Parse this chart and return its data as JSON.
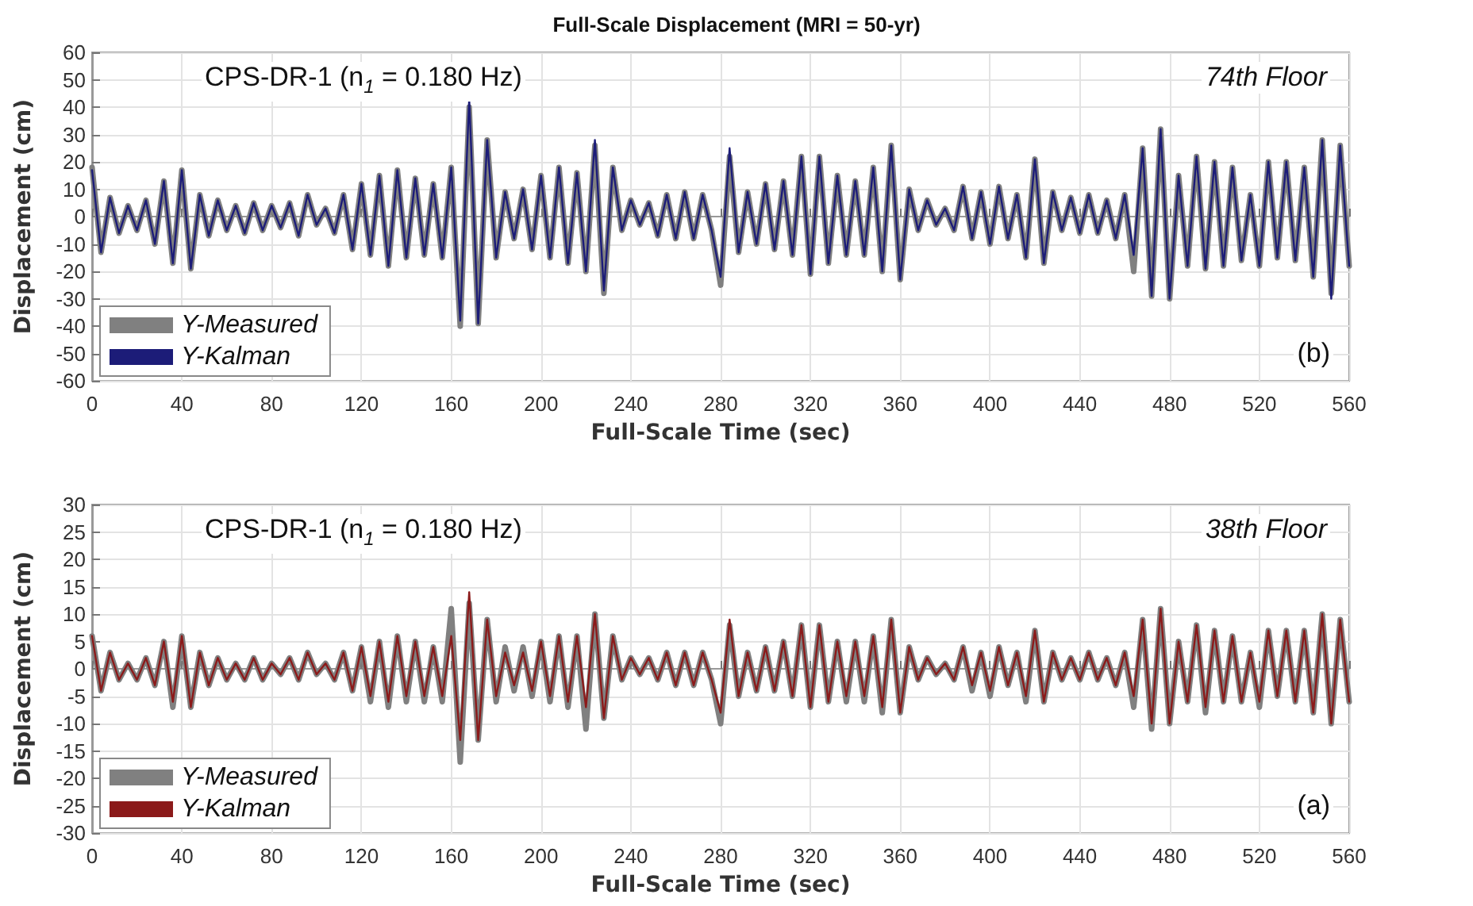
{
  "chart_data": [
    {
      "type": "line",
      "title": "Full-Scale Displacement (MRI = 50-yr)",
      "xlabel": "Full-Scale Time (sec)",
      "ylabel": "Displacement (cm)",
      "annotations": [
        "CPS-DR-1 (n$_{1}$ = 0.180 Hz)",
        "74th Floor",
        "(b)"
      ],
      "x": [
        0,
        4,
        8,
        12,
        16,
        20,
        24,
        28,
        32,
        36,
        40,
        44,
        48,
        52,
        56,
        60,
        64,
        68,
        72,
        76,
        80,
        84,
        88,
        92,
        96,
        100,
        104,
        108,
        112,
        116,
        120,
        124,
        128,
        132,
        136,
        140,
        144,
        148,
        152,
        156,
        160,
        164,
        168,
        172,
        176,
        180,
        184,
        188,
        192,
        196,
        200,
        204,
        208,
        212,
        216,
        220,
        224,
        228,
        232,
        236,
        240,
        244,
        248,
        252,
        256,
        260,
        264,
        268,
        272,
        276,
        280,
        284,
        288,
        292,
        296,
        300,
        304,
        308,
        312,
        316,
        320,
        324,
        328,
        332,
        336,
        340,
        344,
        348,
        352,
        356,
        360,
        364,
        368,
        372,
        376,
        380,
        384,
        388,
        392,
        396,
        400,
        404,
        408,
        412,
        416,
        420,
        424,
        428,
        432,
        436,
        440,
        444,
        448,
        452,
        456,
        460,
        464,
        468,
        472,
        476,
        480,
        484,
        488,
        492,
        496,
        500,
        504,
        508,
        512,
        516,
        520,
        524,
        528,
        532,
        536,
        540,
        544,
        548,
        552,
        556,
        560
      ],
      "series": [
        {
          "name": "Y-Measured",
          "color": "#808080",
          "values": [
            18,
            -13,
            7,
            -6,
            4,
            -5,
            6,
            -10,
            13,
            -17,
            17,
            -19,
            8,
            -7,
            6,
            -5,
            4,
            -6,
            5,
            -5,
            4,
            -4,
            5,
            -7,
            8,
            -3,
            3,
            -6,
            8,
            -12,
            12,
            -14,
            15,
            -18,
            17,
            -15,
            14,
            -14,
            12,
            -15,
            18,
            -40,
            40,
            -39,
            28,
            -15,
            9,
            -8,
            10,
            -12,
            15,
            -15,
            18,
            -17,
            16,
            -20,
            26,
            -28,
            18,
            -5,
            6,
            -3,
            5,
            -7,
            8,
            -8,
            9,
            -8,
            8,
            -5,
            -25,
            22,
            -13,
            9,
            -10,
            12,
            -12,
            13,
            -14,
            22,
            -21,
            22,
            -17,
            15,
            -14,
            13,
            -14,
            18,
            -20,
            26,
            -23,
            10,
            -5,
            6,
            -3,
            3,
            -5,
            11,
            -8,
            9,
            -10,
            11,
            -8,
            8,
            -15,
            21,
            -17,
            9,
            -5,
            7,
            -6,
            8,
            -6,
            6,
            -8,
            8,
            -20,
            25,
            -29,
            32,
            -30,
            15,
            -18,
            22,
            -19,
            20,
            -18,
            18,
            -16,
            8,
            -18,
            20,
            -15,
            20,
            -16,
            18,
            -22,
            28,
            -28,
            26,
            -18
          ]
        },
        {
          "name": "Y-Kalman",
          "color": "#1c1c78",
          "values": [
            17,
            -13,
            7,
            -6,
            4,
            -5,
            6,
            -10,
            13,
            -17,
            17,
            -19,
            8,
            -7,
            6,
            -5,
            4,
            -6,
            5,
            -5,
            4,
            -4,
            5,
            -7,
            8,
            -3,
            3,
            -6,
            8,
            -12,
            12,
            -14,
            15,
            -18,
            17,
            -15,
            14,
            -14,
            12,
            -15,
            18,
            -38,
            43,
            -39,
            28,
            -15,
            9,
            -8,
            10,
            -12,
            15,
            -15,
            18,
            -17,
            16,
            -20,
            28,
            -27,
            18,
            -5,
            6,
            -3,
            5,
            -7,
            8,
            -8,
            9,
            -8,
            8,
            -5,
            -22,
            25,
            -13,
            9,
            -10,
            12,
            -12,
            13,
            -14,
            22,
            -21,
            22,
            -17,
            15,
            -14,
            13,
            -14,
            18,
            -20,
            26,
            -23,
            10,
            -5,
            6,
            -3,
            3,
            -5,
            11,
            -8,
            9,
            -10,
            11,
            -8,
            8,
            -15,
            21,
            -17,
            9,
            -5,
            7,
            -6,
            8,
            -6,
            6,
            -8,
            8,
            -14,
            25,
            -29,
            32,
            -30,
            15,
            -18,
            22,
            -19,
            20,
            -18,
            18,
            -16,
            8,
            -18,
            20,
            -15,
            20,
            -16,
            18,
            -22,
            28,
            -30,
            26,
            -18
          ]
        }
      ],
      "xlim": [
        0,
        560
      ],
      "xticks": [
        0,
        40,
        80,
        120,
        160,
        200,
        240,
        280,
        320,
        360,
        400,
        440,
        480,
        520,
        560
      ],
      "ylim": [
        -60,
        60
      ],
      "yticks": [
        -60,
        -50,
        -40,
        -30,
        -20,
        -10,
        0,
        10,
        20,
        30,
        40,
        50,
        60
      ],
      "grid": true,
      "legend": "bottom left"
    },
    {
      "type": "line",
      "xlabel": "Full-Scale Time (sec)",
      "ylabel": "Displacement (cm)",
      "annotations": [
        "CPS-DR-1 (n$_{1}$ = 0.180 Hz)",
        "38th Floor",
        "(a)"
      ],
      "x": [
        0,
        4,
        8,
        12,
        16,
        20,
        24,
        28,
        32,
        36,
        40,
        44,
        48,
        52,
        56,
        60,
        64,
        68,
        72,
        76,
        80,
        84,
        88,
        92,
        96,
        100,
        104,
        108,
        112,
        116,
        120,
        124,
        128,
        132,
        136,
        140,
        144,
        148,
        152,
        156,
        160,
        164,
        168,
        172,
        176,
        180,
        184,
        188,
        192,
        196,
        200,
        204,
        208,
        212,
        216,
        220,
        224,
        228,
        232,
        236,
        240,
        244,
        248,
        252,
        256,
        260,
        264,
        268,
        272,
        276,
        280,
        284,
        288,
        292,
        296,
        300,
        304,
        308,
        312,
        316,
        320,
        324,
        328,
        332,
        336,
        340,
        344,
        348,
        352,
        356,
        360,
        364,
        368,
        372,
        376,
        380,
        384,
        388,
        392,
        396,
        400,
        404,
        408,
        412,
        416,
        420,
        424,
        428,
        432,
        436,
        440,
        444,
        448,
        452,
        456,
        460,
        464,
        468,
        472,
        476,
        480,
        484,
        488,
        492,
        496,
        500,
        504,
        508,
        512,
        516,
        520,
        524,
        528,
        532,
        536,
        540,
        544,
        548,
        552,
        556,
        560
      ],
      "series": [
        {
          "name": "Y-Measured",
          "color": "#808080",
          "values": [
            6,
            -4,
            3,
            -2,
            1,
            -2,
            2,
            -3,
            5,
            -7,
            6,
            -7,
            3,
            -3,
            2,
            -2,
            1,
            -2,
            2,
            -2,
            1,
            -1,
            2,
            -2,
            3,
            -1,
            1,
            -2,
            3,
            -4,
            4,
            -6,
            5,
            -7,
            6,
            -6,
            5,
            -6,
            4,
            -6,
            11,
            -17,
            12,
            -13,
            9,
            -6,
            4,
            -4,
            4,
            -5,
            5,
            -6,
            6,
            -7,
            6,
            -11,
            10,
            -9,
            6,
            -2,
            2,
            -1,
            2,
            -2,
            3,
            -3,
            3,
            -3,
            3,
            -2,
            -10,
            8,
            -5,
            3,
            -4,
            4,
            -4,
            5,
            -5,
            8,
            -7,
            8,
            -6,
            5,
            -6,
            5,
            -6,
            6,
            -8,
            9,
            -8,
            4,
            -2,
            2,
            -1,
            1,
            -2,
            4,
            -4,
            3,
            -5,
            4,
            -3,
            3,
            -6,
            7,
            -6,
            3,
            -2,
            2,
            -2,
            3,
            -2,
            2,
            -3,
            3,
            -7,
            9,
            -11,
            11,
            -10,
            5,
            -6,
            8,
            -8,
            7,
            -6,
            6,
            -6,
            3,
            -7,
            7,
            -5,
            7,
            -6,
            7,
            -8,
            10,
            -10,
            9,
            -6
          ]
        },
        {
          "name": "Y-Kalman",
          "color": "#8b1a1a",
          "values": [
            6,
            -4,
            3,
            -2,
            1,
            -2,
            2,
            -3,
            5,
            -6,
            6,
            -7,
            3,
            -3,
            2,
            -2,
            1,
            -2,
            2,
            -2,
            1,
            -1,
            2,
            -2,
            3,
            -1,
            1,
            -2,
            3,
            -4,
            4,
            -5,
            5,
            -6,
            6,
            -5,
            5,
            -5,
            4,
            -5,
            6,
            -13,
            14,
            -13,
            9,
            -5,
            3,
            -3,
            3,
            -4,
            5,
            -5,
            6,
            -6,
            6,
            -7,
            10,
            -9,
            6,
            -2,
            2,
            -1,
            2,
            -2,
            3,
            -3,
            3,
            -3,
            3,
            -2,
            -8,
            9,
            -5,
            3,
            -4,
            4,
            -4,
            5,
            -5,
            8,
            -7,
            8,
            -6,
            5,
            -5,
            5,
            -5,
            6,
            -7,
            9,
            -8,
            4,
            -2,
            2,
            -1,
            1,
            -2,
            4,
            -3,
            3,
            -4,
            4,
            -3,
            3,
            -5,
            7,
            -6,
            3,
            -2,
            2,
            -2,
            3,
            -2,
            2,
            -3,
            3,
            -5,
            9,
            -10,
            11,
            -10,
            5,
            -6,
            8,
            -7,
            7,
            -6,
            6,
            -6,
            3,
            -6,
            7,
            -5,
            7,
            -6,
            7,
            -8,
            10,
            -10,
            9,
            -6
          ]
        }
      ],
      "xlim": [
        0,
        560
      ],
      "xticks": [
        0,
        40,
        80,
        120,
        160,
        200,
        240,
        280,
        320,
        360,
        400,
        440,
        480,
        520,
        560
      ],
      "ylim": [
        -30,
        30
      ],
      "yticks": [
        -30,
        -25,
        -20,
        -15,
        -10,
        -5,
        0,
        5,
        10,
        15,
        20,
        25,
        30
      ],
      "grid": true,
      "legend": "bottom left"
    }
  ]
}
